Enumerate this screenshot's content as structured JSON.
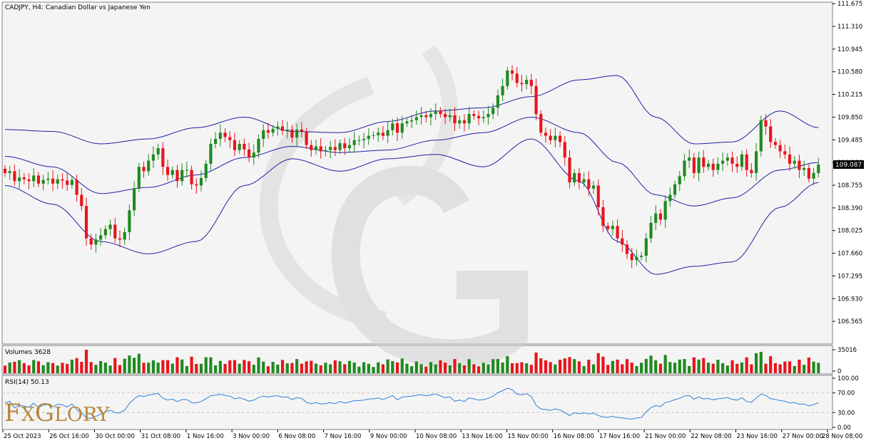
{
  "chart_data": {
    "type": "candlestick",
    "title": "CADJPY, H4:  Canadian Dollar vs Japanese Yen",
    "price_ylim": [
      106.2,
      111.7
    ],
    "price_ticks": [
      "111.675",
      "111.310",
      "110.945",
      "110.580",
      "110.215",
      "109.850",
      "109.485",
      "109.120",
      "108.755",
      "108.390",
      "108.025",
      "107.660",
      "107.295",
      "106.930",
      "106.565"
    ],
    "last_price": "109.087",
    "x_labels": [
      "25 Oct 2023",
      "26 Oct 16:00",
      "30 Oct 00:00",
      "31 Oct 08:00",
      "1 Nov 16:00",
      "3 Nov 00:00",
      "6 Nov 08:00",
      "7 Nov 16:00",
      "9 Nov 00:00",
      "10 Nov 08:00",
      "13 Nov 16:00",
      "15 Nov 00:00",
      "16 Nov 08:00",
      "17 Nov 16:00",
      "21 Nov 00:00",
      "22 Nov 08:00",
      "23 Nov 16:00",
      "27 Nov 00:00",
      "28 Nov 08:00"
    ],
    "close": [
      108.95,
      108.98,
      108.82,
      108.88,
      108.85,
      108.82,
      108.91,
      108.78,
      108.84,
      108.86,
      108.78,
      108.85,
      108.83,
      108.76,
      108.84,
      108.6,
      108.42,
      107.9,
      107.8,
      107.88,
      107.95,
      108.05,
      108.12,
      107.9,
      107.88,
      108.0,
      108.35,
      108.7,
      109.05,
      108.98,
      109.15,
      109.25,
      109.35,
      109.05,
      108.92,
      109.0,
      108.82,
      109.0,
      109.0,
      108.77,
      108.75,
      108.87,
      109.1,
      109.42,
      109.5,
      109.6,
      109.53,
      109.48,
      109.32,
      109.42,
      109.33,
      109.2,
      109.28,
      109.5,
      109.64,
      109.6,
      109.66,
      109.7,
      109.63,
      109.65,
      109.52,
      109.65,
      109.62,
      109.4,
      109.32,
      109.38,
      109.3,
      109.32,
      109.37,
      109.32,
      109.43,
      109.35,
      109.4,
      109.48,
      109.48,
      109.5,
      109.55,
      109.56,
      109.6,
      109.55,
      109.64,
      109.75,
      109.6,
      109.75,
      109.78,
      109.8,
      109.85,
      109.88,
      109.85,
      109.9,
      109.95,
      109.9,
      109.85,
      109.88,
      109.75,
      109.8,
      109.75,
      109.9,
      109.87,
      109.83,
      109.85,
      109.9,
      110.0,
      110.2,
      110.35,
      110.6,
      110.55,
      110.4,
      110.38,
      110.45,
      110.35,
      109.9,
      109.6,
      109.55,
      109.48,
      109.55,
      109.45,
      109.2,
      108.8,
      108.95,
      108.8,
      108.85,
      108.7,
      108.75,
      108.4,
      108.1,
      108.05,
      108.1,
      107.9,
      107.8,
      107.65,
      107.55,
      107.6,
      107.62,
      107.9,
      108.15,
      108.3,
      108.2,
      108.5,
      108.6,
      108.77,
      108.9,
      109.15,
      109.2,
      108.95,
      109.2,
      109.05,
      109.1,
      109.0,
      109.1,
      109.15,
      109.2,
      109.1,
      109.05,
      109.25,
      109.0,
      108.95,
      109.3,
      109.8,
      109.7,
      109.45,
      109.4,
      109.3,
      109.25,
      109.1,
      109.15,
      109.0,
      109.03,
      108.86,
      108.95,
      109.087
    ],
    "open": [
      109.02,
      108.95,
      108.98,
      108.82,
      108.88,
      108.85,
      108.82,
      108.91,
      108.78,
      108.84,
      108.86,
      108.78,
      108.85,
      108.83,
      108.76,
      108.84,
      108.6,
      108.42,
      107.9,
      107.8,
      107.88,
      107.95,
      108.05,
      108.12,
      107.9,
      107.88,
      108.0,
      108.35,
      108.7,
      109.05,
      108.98,
      109.15,
      109.25,
      109.35,
      109.05,
      108.92,
      109.0,
      108.82,
      109.0,
      109.0,
      108.77,
      108.75,
      108.87,
      109.1,
      109.42,
      109.5,
      109.6,
      109.53,
      109.48,
      109.32,
      109.42,
      109.33,
      109.2,
      109.28,
      109.5,
      109.64,
      109.6,
      109.66,
      109.7,
      109.63,
      109.65,
      109.52,
      109.65,
      109.62,
      109.4,
      109.32,
      109.38,
      109.3,
      109.32,
      109.37,
      109.32,
      109.43,
      109.35,
      109.4,
      109.48,
      109.48,
      109.5,
      109.55,
      109.56,
      109.6,
      109.55,
      109.64,
      109.75,
      109.6,
      109.75,
      109.78,
      109.8,
      109.85,
      109.88,
      109.85,
      109.9,
      109.95,
      109.9,
      109.85,
      109.88,
      109.75,
      109.8,
      109.75,
      109.9,
      109.87,
      109.83,
      109.85,
      109.9,
      110.0,
      110.2,
      110.35,
      110.6,
      110.55,
      110.4,
      110.38,
      110.45,
      110.35,
      109.9,
      109.6,
      109.55,
      109.48,
      109.55,
      109.45,
      109.2,
      108.8,
      108.95,
      108.8,
      108.85,
      108.7,
      108.75,
      108.4,
      108.1,
      108.05,
      108.1,
      107.9,
      107.8,
      107.65,
      107.55,
      107.6,
      107.62,
      107.9,
      108.15,
      108.3,
      108.2,
      108.5,
      108.6,
      108.77,
      108.9,
      109.15,
      109.2,
      108.95,
      109.2,
      109.05,
      109.1,
      109.0,
      109.1,
      109.15,
      109.2,
      109.1,
      109.05,
      109.25,
      109.0,
      108.95,
      109.3,
      109.8,
      109.7,
      109.45,
      109.4,
      109.3,
      109.25,
      109.1,
      109.15,
      109.0,
      109.03,
      108.86,
      108.95
    ],
    "bollinger": {
      "color": "#1f1fa8",
      "upper": [
        [
          0,
          109.65
        ],
        [
          10,
          109.62
        ],
        [
          20,
          109.42
        ],
        [
          30,
          109.5
        ],
        [
          40,
          109.68
        ],
        [
          50,
          109.85
        ],
        [
          60,
          109.62
        ],
        [
          70,
          109.6
        ],
        [
          80,
          109.78
        ],
        [
          90,
          109.95
        ],
        [
          100,
          110.0
        ],
        [
          110,
          110.18
        ],
        [
          120,
          110.45
        ],
        [
          128,
          110.52
        ],
        [
          136,
          109.85
        ],
        [
          144,
          109.42
        ],
        [
          152,
          109.45
        ],
        [
          162,
          109.95
        ],
        [
          170,
          109.68
        ],
        [
          176,
          109.67
        ]
      ],
      "middle": [
        [
          0,
          109.22
        ],
        [
          10,
          109.05
        ],
        [
          20,
          108.62
        ],
        [
          30,
          108.72
        ],
        [
          40,
          108.92
        ],
        [
          50,
          109.2
        ],
        [
          60,
          109.38
        ],
        [
          70,
          109.28
        ],
        [
          80,
          109.32
        ],
        [
          90,
          109.48
        ],
        [
          100,
          109.6
        ],
        [
          110,
          109.85
        ],
        [
          120,
          109.6
        ],
        [
          128,
          109.12
        ],
        [
          136,
          108.6
        ],
        [
          144,
          108.42
        ],
        [
          152,
          108.55
        ],
        [
          162,
          109.0
        ],
        [
          170,
          109.12
        ],
        [
          176,
          109.1
        ]
      ],
      "lower": [
        [
          0,
          108.75
        ],
        [
          10,
          108.45
        ],
        [
          20,
          107.85
        ],
        [
          30,
          107.65
        ],
        [
          40,
          107.85
        ],
        [
          50,
          108.75
        ],
        [
          60,
          109.18
        ],
        [
          70,
          108.98
        ],
        [
          80,
          109.18
        ],
        [
          90,
          109.25
        ],
        [
          100,
          109.05
        ],
        [
          110,
          109.5
        ],
        [
          120,
          108.82
        ],
        [
          128,
          107.85
        ],
        [
          136,
          107.32
        ],
        [
          144,
          107.45
        ],
        [
          152,
          107.52
        ],
        [
          162,
          108.4
        ],
        [
          170,
          108.8
        ],
        [
          176,
          108.75
        ]
      ]
    },
    "volume": {
      "label": "Volumes 3628",
      "ticks": [
        "35016",
        "0"
      ],
      "max": 35016
    },
    "rsi": {
      "label": "RSI(14) 50.13",
      "ticks": [
        "100.00",
        "70.00",
        "30.00",
        "0.00"
      ],
      "levels": [
        70,
        30
      ],
      "color": "#2f7fd6"
    },
    "colors": {
      "bull": "#1f8a1f",
      "bear": "#e8141c",
      "grid_dash": "#c8c8c8",
      "background": "#f4f4f4"
    }
  },
  "watermark": {
    "brand": "FxGlory",
    "brand_letters": [
      "F",
      "X",
      "G",
      "LORY"
    ]
  }
}
